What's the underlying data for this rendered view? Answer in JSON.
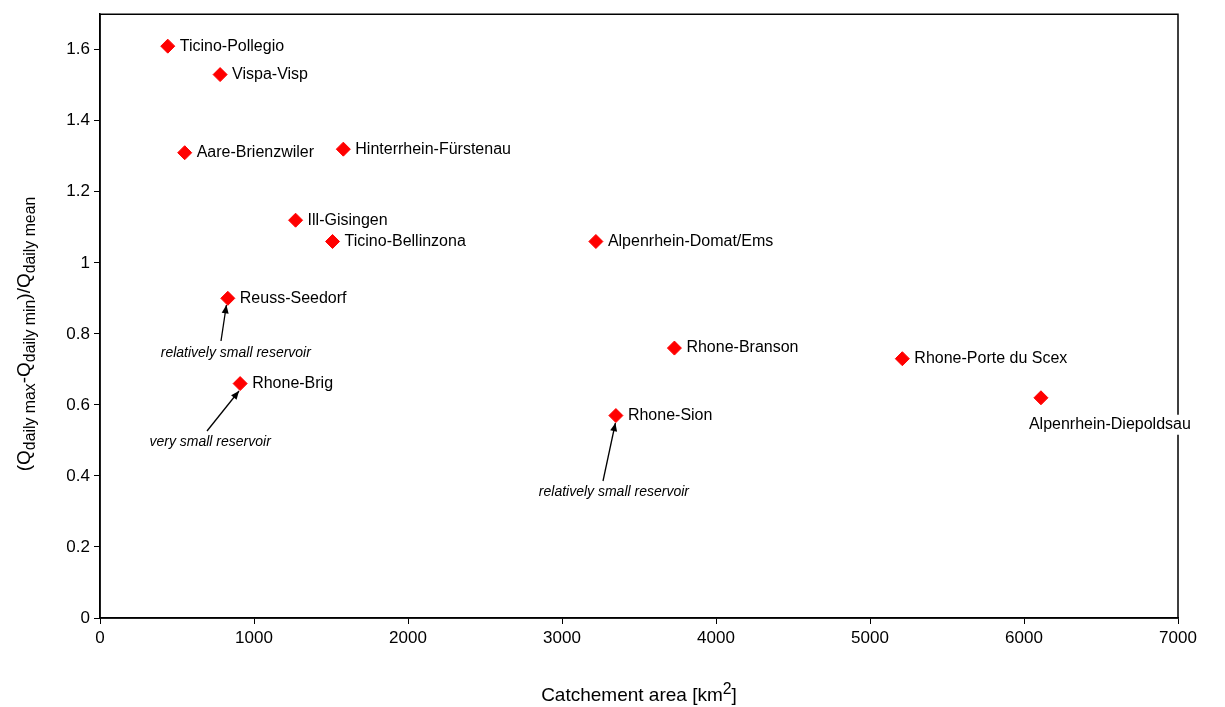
{
  "chart_data": {
    "type": "scatter",
    "xlabel": "Catchement area [km$^{2}$]",
    "ylabel": "(Q$_{daily max}$-Q$_{daily min}$)/Q$_{daily mean}$",
    "xlim": [
      0,
      7000
    ],
    "xticks": [
      0,
      1000,
      2000,
      3000,
      4000,
      5000,
      6000,
      7000
    ],
    "ylim": [
      0,
      1.7
    ],
    "yticks": [
      0,
      0.2,
      0.4,
      0.6,
      0.8,
      1,
      1.2,
      1.4,
      1.6
    ],
    "grid": false,
    "legend": false,
    "marker": "diamond",
    "series": [
      {
        "name": "Ticino-Pollegio",
        "color": "#ff0000",
        "x": [
          440
        ],
        "values": [
          1.61
        ]
      },
      {
        "name": "Vispa-Visp",
        "color": "#ff0000",
        "x": [
          780
        ],
        "values": [
          1.53
        ]
      },
      {
        "name": "Aare-Brienzwiler",
        "color": "#ff0000",
        "x": [
          550
        ],
        "values": [
          1.31
        ]
      },
      {
        "name": "Hinterrhein-Fürstenau",
        "color": "#ff0000",
        "x": [
          1580
        ],
        "values": [
          1.32
        ]
      },
      {
        "name": "Ill-Gisingen",
        "color": "#ff0000",
        "x": [
          1270
        ],
        "values": [
          1.12
        ]
      },
      {
        "name": "Ticino-Bellinzona",
        "color": "#ff0000",
        "x": [
          1510
        ],
        "values": [
          1.06
        ]
      },
      {
        "name": "Alpenrhein-Domat/Ems",
        "color": "#ff0000",
        "x": [
          3220
        ],
        "values": [
          1.06
        ]
      },
      {
        "name": "Reuss-Seedorf",
        "color": "#ff0000",
        "x": [
          830
        ],
        "values": [
          0.9
        ]
      },
      {
        "name": "Rhone-Brig",
        "color": "#ff0000",
        "x": [
          910
        ],
        "values": [
          0.66
        ]
      },
      {
        "name": "Rhone-Sion",
        "color": "#ff0000",
        "x": [
          3350
        ],
        "values": [
          0.57
        ]
      },
      {
        "name": "Rhone-Branson",
        "color": "#ff0000",
        "x": [
          3730
        ],
        "values": [
          0.76
        ]
      },
      {
        "name": "Rhone-Porte du Scex",
        "color": "#ff0000",
        "x": [
          5210
        ],
        "values": [
          0.73
        ]
      },
      {
        "name": "Alpenrhein-Diepoldsau",
        "color": "#ff0000",
        "x": [
          6110
        ],
        "values": [
          0.62
        ]
      }
    ],
    "annotations": [
      {
        "text": "relatively small reservoir",
        "x": 830,
        "y": 0.9
      },
      {
        "text": "very small reservoir",
        "x": 910,
        "y": 0.66
      },
      {
        "text": "relatively small reservoir",
        "x": 3350,
        "y": 0.57
      }
    ]
  }
}
